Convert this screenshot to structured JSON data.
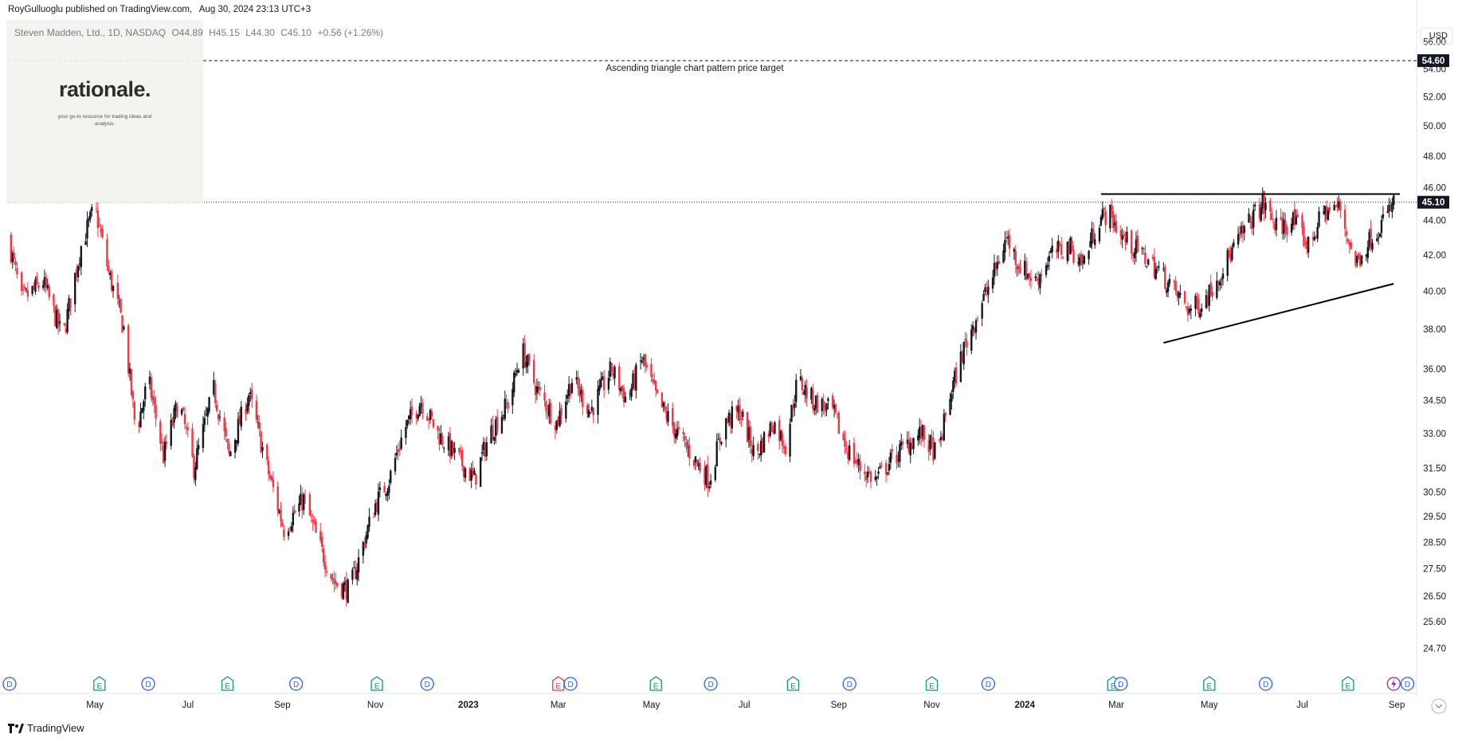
{
  "header": {
    "publisher": "RoyGulluoglu published on TradingView.com,",
    "date": "Aug 30, 2024 23:13 UTC+3"
  },
  "symbol_info": {
    "name": "Steven Madden, Ltd., 1D, NASDAQ",
    "open": "O44.89",
    "high": "H45.15",
    "low": "L44.30",
    "close": "C45.10",
    "change": "+0.56 (+1.26%)"
  },
  "logo": {
    "name": "rationale.",
    "tagline": "your go-to resource for trading ideas and analysis."
  },
  "footer": {
    "brand": "TradingView"
  },
  "colors": {
    "up": "#131722",
    "down": "#f23645",
    "grid_text": "#131722",
    "dividend": "#2962ff",
    "earnings": "#089981",
    "earnings_miss": "#f23645",
    "split": "#9c27b0"
  },
  "chart_data": {
    "type": "candlestick",
    "currency": "USD",
    "y_ticks": [
      "56.00",
      "54.00",
      "52.00",
      "50.00",
      "48.00",
      "46.00",
      "44.00",
      "42.00",
      "40.00",
      "38.00",
      "36.00",
      "34.50",
      "33.00",
      "31.50",
      "30.50",
      "29.50",
      "28.50",
      "27.50",
      "26.50",
      "25.60",
      "24.70"
    ],
    "y_scale": "log",
    "y_range": [
      24.0,
      57.5
    ],
    "x_labels": [
      "May",
      "Jul",
      "Sep",
      "Nov",
      "2023",
      "Mar",
      "May",
      "Jul",
      "Sep",
      "Nov",
      "2024",
      "Mar",
      "May",
      "Jul",
      "Sep"
    ],
    "x_range": [
      "2022-03-05",
      "2024-09-14"
    ],
    "last_price": "45.10",
    "target_price": "54.60",
    "annotation": "Ascending triangle chart pattern price target",
    "resistance_line": {
      "from": [
        "2024-02-20",
        45.6
      ],
      "to": [
        "2024-09-03",
        45.6
      ]
    },
    "support_line": {
      "from": [
        "2024-04-01",
        37.3
      ],
      "to": [
        "2024-08-30",
        40.4
      ]
    },
    "price_path": [
      [
        "2022-03-05",
        43.0
      ],
      [
        "2022-03-14",
        39.5
      ],
      [
        "2022-03-28",
        40.5
      ],
      [
        "2022-04-10",
        37.5
      ],
      [
        "2022-04-22",
        42.5
      ],
      [
        "2022-05-01",
        44.8
      ],
      [
        "2022-05-10",
        41.0
      ],
      [
        "2022-05-20",
        38.0
      ],
      [
        "2022-05-28",
        33.0
      ],
      [
        "2022-06-05",
        35.5
      ],
      [
        "2022-06-15",
        32.0
      ],
      [
        "2022-06-25",
        34.5
      ],
      [
        "2022-07-05",
        31.5
      ],
      [
        "2022-07-18",
        35.0
      ],
      [
        "2022-07-28",
        32.0
      ],
      [
        "2022-08-10",
        34.8
      ],
      [
        "2022-08-22",
        31.5
      ],
      [
        "2022-09-02",
        29.0
      ],
      [
        "2022-09-15",
        30.2
      ],
      [
        "2022-09-25",
        28.4
      ],
      [
        "2022-10-05",
        27.0
      ],
      [
        "2022-10-15",
        26.7
      ],
      [
        "2022-10-22",
        28.0
      ],
      [
        "2022-11-01",
        30.0
      ],
      [
        "2022-11-10",
        31.0
      ],
      [
        "2022-11-20",
        33.2
      ],
      [
        "2022-12-01",
        34.5
      ],
      [
        "2022-12-12",
        33.0
      ],
      [
        "2022-12-24",
        32.0
      ],
      [
        "2023-01-05",
        31.0
      ],
      [
        "2023-01-15",
        33.0
      ],
      [
        "2023-01-28",
        34.5
      ],
      [
        "2023-02-05",
        37.0
      ],
      [
        "2023-02-15",
        35.0
      ],
      [
        "2023-02-28",
        33.5
      ],
      [
        "2023-03-10",
        35.5
      ],
      [
        "2023-03-22",
        34.0
      ],
      [
        "2023-04-05",
        36.0
      ],
      [
        "2023-04-15",
        34.5
      ],
      [
        "2023-04-25",
        36.5
      ],
      [
        "2023-05-05",
        34.5
      ],
      [
        "2023-05-18",
        33.0
      ],
      [
        "2023-05-28",
        32.0
      ],
      [
        "2023-06-08",
        31.0
      ],
      [
        "2023-06-18",
        33.5
      ],
      [
        "2023-06-28",
        34.0
      ],
      [
        "2023-07-08",
        32.0
      ],
      [
        "2023-07-20",
        33.5
      ],
      [
        "2023-07-28",
        32.5
      ],
      [
        "2023-08-05",
        35.5
      ],
      [
        "2023-08-15",
        34.5
      ],
      [
        "2023-08-28",
        34.0
      ],
      [
        "2023-09-05",
        32.5
      ],
      [
        "2023-09-15",
        31.5
      ],
      [
        "2023-09-25",
        31.0
      ],
      [
        "2023-10-05",
        31.8
      ],
      [
        "2023-10-15",
        32.5
      ],
      [
        "2023-10-25",
        33.0
      ],
      [
        "2023-11-05",
        32.0
      ],
      [
        "2023-11-12",
        34.5
      ],
      [
        "2023-11-22",
        37.0
      ],
      [
        "2023-12-02",
        39.0
      ],
      [
        "2023-12-12",
        41.0
      ],
      [
        "2023-12-20",
        43.0
      ],
      [
        "2023-12-28",
        41.5
      ],
      [
        "2024-01-08",
        40.5
      ],
      [
        "2024-01-18",
        42.0
      ],
      [
        "2024-01-30",
        42.5
      ],
      [
        "2024-02-08",
        41.5
      ],
      [
        "2024-02-18",
        44.0
      ],
      [
        "2024-02-25",
        44.5
      ],
      [
        "2024-03-05",
        43.0
      ],
      [
        "2024-03-18",
        42.0
      ],
      [
        "2024-03-30",
        41.0
      ],
      [
        "2024-04-08",
        40.0
      ],
      [
        "2024-04-18",
        39.0
      ],
      [
        "2024-04-28",
        39.5
      ],
      [
        "2024-05-08",
        41.0
      ],
      [
        "2024-05-18",
        42.5
      ],
      [
        "2024-05-28",
        44.0
      ],
      [
        "2024-06-05",
        45.0
      ],
      [
        "2024-06-15",
        43.5
      ],
      [
        "2024-06-25",
        44.0
      ],
      [
        "2024-07-05",
        42.5
      ],
      [
        "2024-07-15",
        44.5
      ],
      [
        "2024-07-25",
        44.8
      ],
      [
        "2024-08-05",
        41.5
      ],
      [
        "2024-08-15",
        43.0
      ],
      [
        "2024-08-25",
        44.2
      ],
      [
        "2024-08-30",
        45.1
      ]
    ],
    "events": [
      {
        "type": "D",
        "date": "2022-03-06"
      },
      {
        "type": "E",
        "date": "2022-05-04"
      },
      {
        "type": "D",
        "date": "2022-06-05"
      },
      {
        "type": "E",
        "date": "2022-07-27"
      },
      {
        "type": "D",
        "date": "2022-09-10"
      },
      {
        "type": "E",
        "date": "2022-11-02"
      },
      {
        "type": "D",
        "date": "2022-12-05"
      },
      {
        "type": "E-miss",
        "date": "2023-03-01"
      },
      {
        "type": "D",
        "date": "2023-03-09"
      },
      {
        "type": "E",
        "date": "2023-05-04"
      },
      {
        "type": "D",
        "date": "2023-06-09"
      },
      {
        "type": "E",
        "date": "2023-08-02"
      },
      {
        "type": "D",
        "date": "2023-09-08"
      },
      {
        "type": "E",
        "date": "2023-11-01"
      },
      {
        "type": "D",
        "date": "2023-12-08"
      },
      {
        "type": "E",
        "date": "2024-02-28"
      },
      {
        "type": "D",
        "date": "2024-03-04"
      },
      {
        "type": "E",
        "date": "2024-05-01"
      },
      {
        "type": "D",
        "date": "2024-06-07"
      },
      {
        "type": "E",
        "date": "2024-07-31"
      },
      {
        "type": "S",
        "date": "2024-08-30"
      },
      {
        "type": "D",
        "date": "2024-09-08"
      }
    ]
  }
}
